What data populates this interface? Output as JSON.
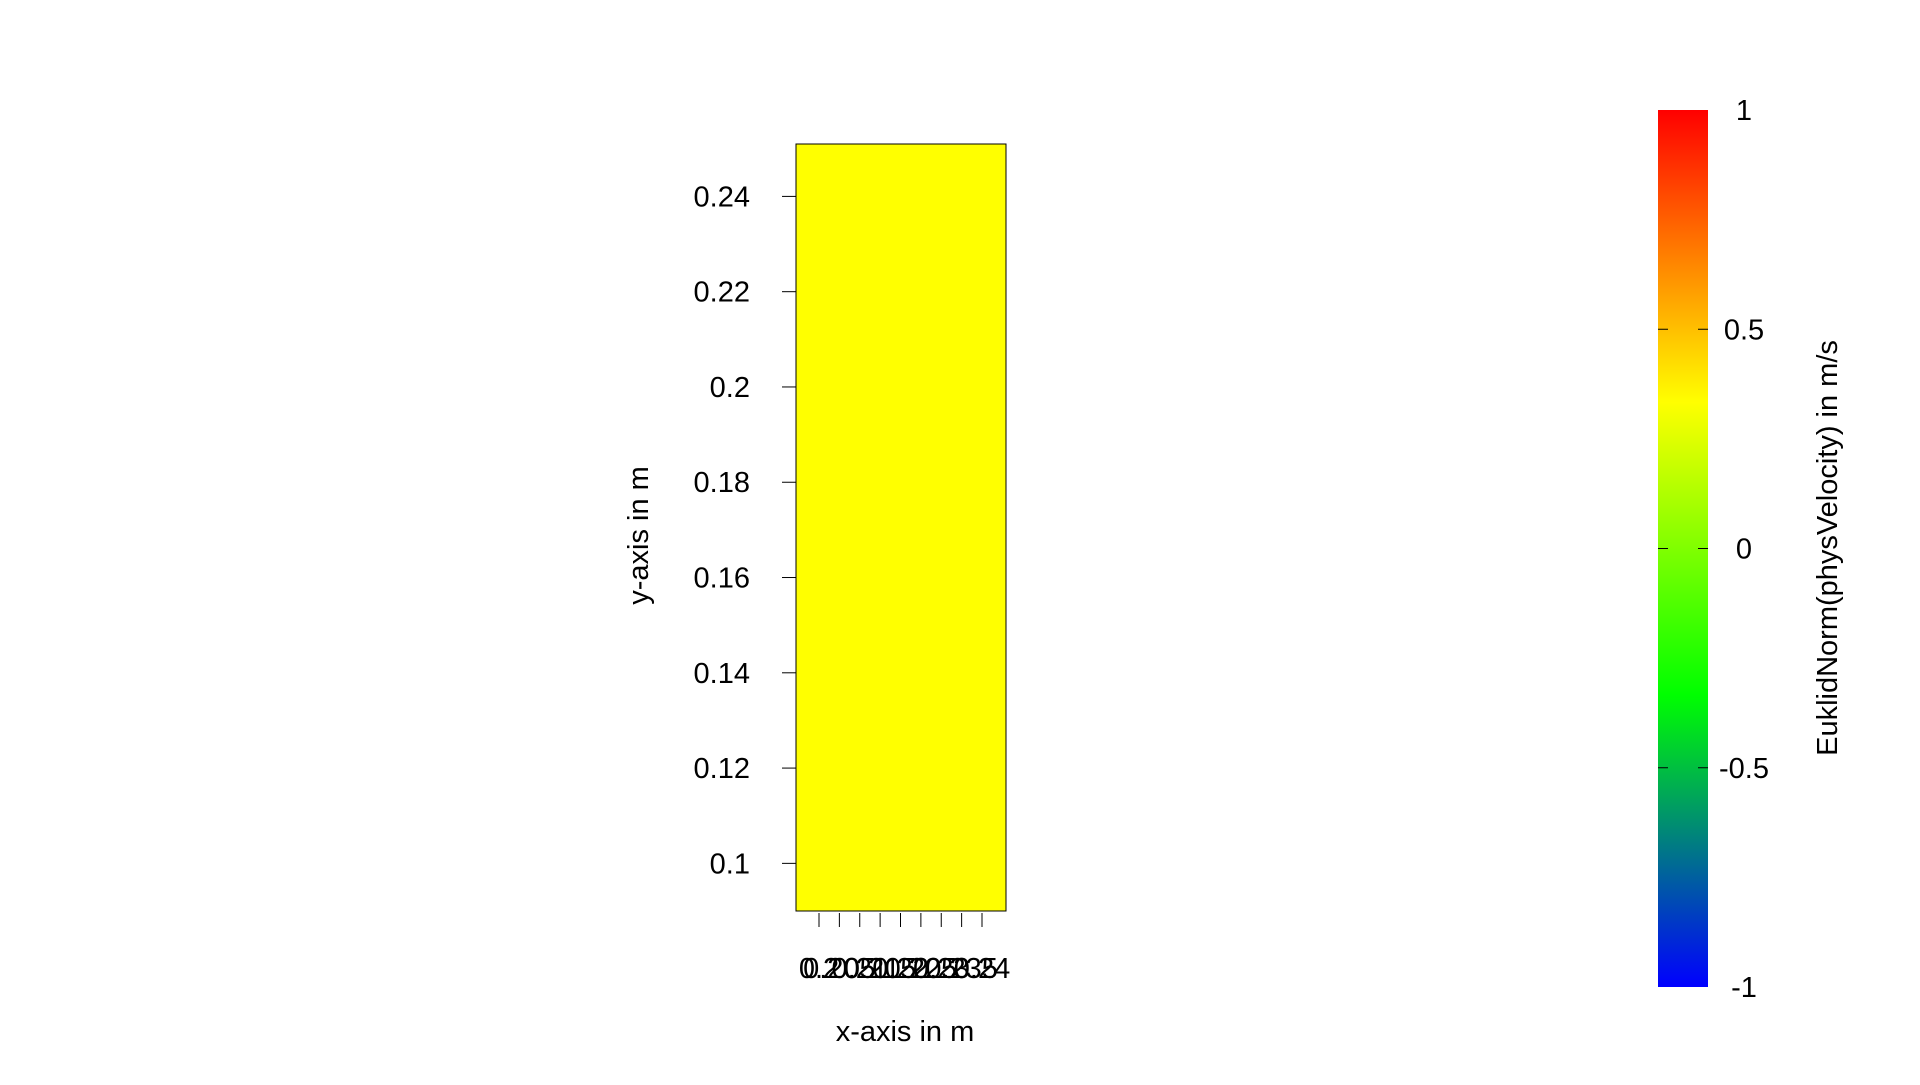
{
  "chart_data": {
    "type": "heatmap",
    "title": "",
    "xlabel": "x-axis in m",
    "ylabel": "y-axis in m",
    "x_tick_labels": [
      "0.2",
      "0.205",
      "0.21",
      "0.215",
      "0.22",
      "0.225",
      "0.23",
      "0.235",
      "0.24"
    ],
    "y_ticks": [
      0.1,
      0.12,
      0.14,
      0.16,
      0.18,
      0.2,
      0.22,
      0.24
    ],
    "y_tick_labels": [
      "0.1",
      "0.12",
      "0.14",
      "0.16",
      "0.18",
      "0.2",
      "0.22",
      "0.24"
    ],
    "xlim": [
      0.195,
      0.24
    ],
    "ylim": [
      0.09,
      0.251
    ],
    "field_value": 0,
    "field_color": "#ffff00",
    "colorbar": {
      "label": "EuklidNorm(physVelocity) in m/s",
      "range": [
        -1,
        1
      ],
      "ticks": [
        -1,
        -0.5,
        0,
        0.5,
        1
      ],
      "tick_labels": [
        "-1",
        "-0.5",
        "0",
        "0.5",
        "1"
      ],
      "colors": [
        "#0000ff",
        "#00ff00",
        "#ffff00",
        "#ff0000"
      ]
    }
  }
}
